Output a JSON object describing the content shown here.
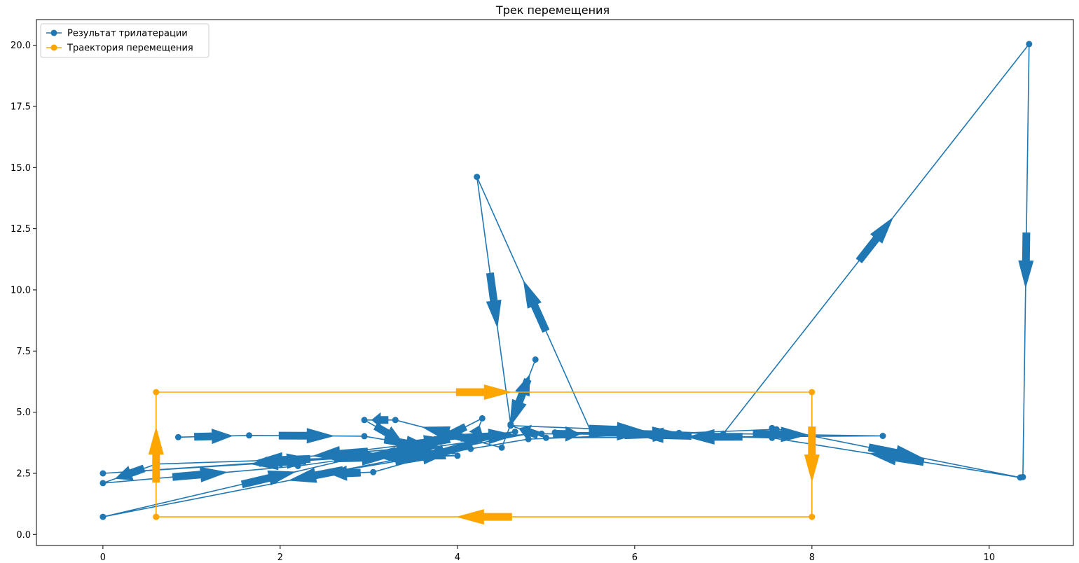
{
  "chart_data": {
    "type": "line",
    "title": "Трек перемещения",
    "xlabel": "",
    "ylabel": "",
    "xlim": [
      -0.75,
      10.95
    ],
    "ylim": [
      -0.45,
      21.05
    ],
    "xticks": [
      0,
      2,
      4,
      6,
      8,
      10
    ],
    "xtick_labels": [
      "0",
      "2",
      "4",
      "6",
      "8",
      "10"
    ],
    "yticks": [
      0.0,
      2.5,
      5.0,
      7.5,
      10.0,
      12.5,
      15.0,
      17.5,
      20.0
    ],
    "ytick_labels": [
      "0.0",
      "2.5",
      "5.0",
      "7.5",
      "10.0",
      "12.5",
      "15.0",
      "17.5",
      "20.0"
    ],
    "grid": false,
    "legend_position": "top-left",
    "series": [
      {
        "name": "Результат трилатерации",
        "color": "#1f77b4",
        "marker": "circle",
        "arrows": true,
        "x": [
          0.85,
          1.65,
          2.95,
          3.95,
          0.0,
          4.15,
          4.28,
          3.45,
          0.6,
          0.0,
          2.2,
          4.8,
          0.0,
          3.75,
          4.95,
          5.52,
          4.22,
          4.6,
          4.88,
          4.5,
          3.3,
          2.95,
          3.5,
          1.85,
          4.0,
          2.6,
          4.65,
          3.05,
          2.42,
          4.8,
          7.6,
          7.55,
          10.35,
          7.55,
          5.1,
          6.5,
          8.8,
          5.0,
          4.6,
          7.0,
          10.45,
          10.38
        ],
        "y": [
          3.98,
          4.05,
          4.02,
          3.4,
          2.5,
          3.5,
          4.75,
          3.22,
          2.88,
          2.1,
          2.8,
          4.12,
          0.72,
          3.9,
          4.12,
          4.1,
          14.62,
          4.5,
          7.15,
          3.55,
          4.68,
          4.68,
          3.55,
          3.05,
          3.22,
          3.3,
          4.2,
          2.55,
          2.45,
          3.9,
          4.3,
          4.35,
          2.33,
          3.95,
          4.17,
          4.15,
          4.03,
          3.95,
          4.45,
          4.12,
          20.05,
          2.35
        ]
      },
      {
        "name": "Траектория перемещения",
        "color": "#ffa500",
        "marker": "circle",
        "arrows": true,
        "x": [
          0.6,
          0.6,
          8.0,
          8.0,
          0.6
        ],
        "y": [
          0.72,
          5.82,
          5.82,
          0.72,
          0.72
        ]
      }
    ]
  }
}
